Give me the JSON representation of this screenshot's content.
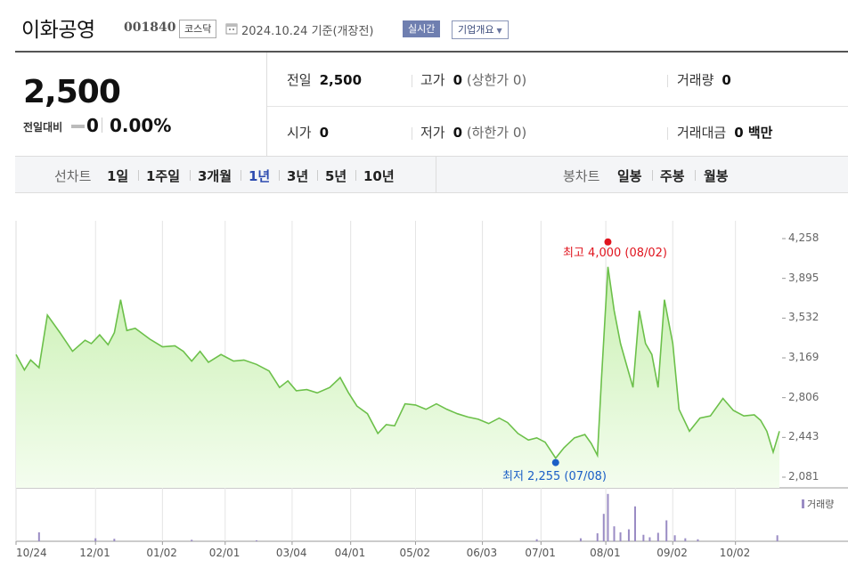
{
  "header": {
    "company_name": "이화공영",
    "stock_code": "001840",
    "market_badge": "코스닥",
    "as_of": "2024.10.24  기준(개장전)",
    "realtime_badge": "실시간",
    "overview_button": "기업개요"
  },
  "quote": {
    "price": "2,500",
    "change_label": "전일대비",
    "change_value": "0",
    "change_pct": "0.00%",
    "prev_close_label": "전일",
    "prev_close": "2,500",
    "high_label": "고가",
    "high": "0",
    "upper_limit_label": "(상한가 0)",
    "volume_label": "거래량",
    "volume": "0",
    "open_label": "시가",
    "open": "0",
    "low_label": "저가",
    "low": "0",
    "lower_limit_label": "(하한가 0)",
    "amount_label": "거래대금",
    "amount": "0 백만"
  },
  "tabs": {
    "line_chart_label": "선차트",
    "periods": [
      "1일",
      "1주일",
      "3개월",
      "1년",
      "3년",
      "5년",
      "10년"
    ],
    "active_period": "1년",
    "candle_chart_label": "봉차트",
    "candles": [
      "일봉",
      "주봉",
      "월봉"
    ]
  },
  "chart_data": {
    "type": "area",
    "y_ticks": [
      "4,258",
      "3,895",
      "3,532",
      "3,169",
      "2,806",
      "2,443",
      "2,081"
    ],
    "x_ticks": [
      "10/24",
      "12/01",
      "01/02",
      "02/01",
      "03/04",
      "04/01",
      "05/02",
      "06/03",
      "07/01",
      "08/01",
      "09/02",
      "10/02"
    ],
    "high_annotation": "최고 4,000 (08/02)",
    "low_annotation": "최저 2,255 (07/08)",
    "volume_legend": "거래량",
    "ylim": [
      2081,
      4258
    ],
    "grid": "vertical",
    "colors": {
      "line": "#6cc04a",
      "fill_top": "#c8f0b0",
      "fill_bottom": "#f4fdef",
      "high": "#e0141e",
      "low": "#1b5fc6",
      "volume": "#9a8cc4"
    },
    "prices": [
      [
        "10/24",
        3200
      ],
      [
        "10/28",
        3060
      ],
      [
        "10/31",
        3150
      ],
      [
        "11/04",
        3080
      ],
      [
        "11/08",
        3560
      ],
      [
        "11/14",
        3400
      ],
      [
        "11/20",
        3230
      ],
      [
        "11/26",
        3330
      ],
      [
        "11/29",
        3300
      ],
      [
        "12/03",
        3380
      ],
      [
        "12/07",
        3290
      ],
      [
        "12/10",
        3400
      ],
      [
        "12/13",
        3700
      ],
      [
        "12/16",
        3420
      ],
      [
        "12/20",
        3440
      ],
      [
        "12/27",
        3340
      ],
      [
        "01/02",
        3270
      ],
      [
        "01/08",
        3280
      ],
      [
        "01/12",
        3230
      ],
      [
        "01/16",
        3140
      ],
      [
        "01/20",
        3230
      ],
      [
        "01/24",
        3130
      ],
      [
        "01/30",
        3200
      ],
      [
        "02/05",
        3140
      ],
      [
        "02/10",
        3150
      ],
      [
        "02/16",
        3110
      ],
      [
        "02/22",
        3050
      ],
      [
        "02/27",
        2900
      ],
      [
        "03/02",
        2960
      ],
      [
        "03/06",
        2870
      ],
      [
        "03/11",
        2880
      ],
      [
        "03/16",
        2850
      ],
      [
        "03/22",
        2900
      ],
      [
        "03/27",
        2990
      ],
      [
        "03/31",
        2850
      ],
      [
        "04/04",
        2730
      ],
      [
        "04/09",
        2660
      ],
      [
        "04/14",
        2480
      ],
      [
        "04/18",
        2560
      ],
      [
        "04/22",
        2550
      ],
      [
        "04/27",
        2750
      ],
      [
        "05/02",
        2740
      ],
      [
        "05/07",
        2700
      ],
      [
        "05/12",
        2750
      ],
      [
        "05/17",
        2700
      ],
      [
        "05/22",
        2660
      ],
      [
        "05/27",
        2630
      ],
      [
        "06/01",
        2610
      ],
      [
        "06/06",
        2570
      ],
      [
        "06/11",
        2620
      ],
      [
        "06/15",
        2580
      ],
      [
        "06/20",
        2480
      ],
      [
        "06/25",
        2420
      ],
      [
        "06/29",
        2440
      ],
      [
        "07/03",
        2400
      ],
      [
        "07/08",
        2255
      ],
      [
        "07/12",
        2350
      ],
      [
        "07/17",
        2440
      ],
      [
        "07/22",
        2470
      ],
      [
        "07/25",
        2390
      ],
      [
        "07/28",
        2280
      ],
      [
        "07/30",
        3000
      ],
      [
        "08/02",
        4000
      ],
      [
        "08/05",
        3600
      ],
      [
        "08/08",
        3300
      ],
      [
        "08/11",
        3100
      ],
      [
        "08/14",
        2900
      ],
      [
        "08/17",
        3600
      ],
      [
        "08/20",
        3300
      ],
      [
        "08/23",
        3200
      ],
      [
        "08/26",
        2900
      ],
      [
        "08/29",
        3700
      ],
      [
        "09/02",
        3300
      ],
      [
        "09/05",
        2700
      ],
      [
        "09/10",
        2500
      ],
      [
        "09/15",
        2620
      ],
      [
        "09/20",
        2640
      ],
      [
        "09/26",
        2800
      ],
      [
        "10/01",
        2690
      ],
      [
        "10/06",
        2640
      ],
      [
        "10/11",
        2650
      ],
      [
        "10/14",
        2600
      ],
      [
        "10/17",
        2500
      ],
      [
        "10/20",
        2310
      ],
      [
        "10/23",
        2500
      ]
    ],
    "volume": [
      [
        "11/04",
        0.18
      ],
      [
        "12/01",
        0.06
      ],
      [
        "12/10",
        0.05
      ],
      [
        "01/16",
        0.03
      ],
      [
        "02/16",
        0.02
      ],
      [
        "06/29",
        0.04
      ],
      [
        "07/20",
        0.06
      ],
      [
        "07/28",
        0.16
      ],
      [
        "07/31",
        0.55
      ],
      [
        "08/02",
        0.95
      ],
      [
        "08/05",
        0.3
      ],
      [
        "08/08",
        0.18
      ],
      [
        "08/12",
        0.24
      ],
      [
        "08/15",
        0.7
      ],
      [
        "08/19",
        0.13
      ],
      [
        "08/22",
        0.08
      ],
      [
        "08/26",
        0.17
      ],
      [
        "08/30",
        0.42
      ],
      [
        "09/03",
        0.12
      ],
      [
        "09/08",
        0.06
      ],
      [
        "09/14",
        0.04
      ],
      [
        "10/22",
        0.12
      ]
    ]
  }
}
